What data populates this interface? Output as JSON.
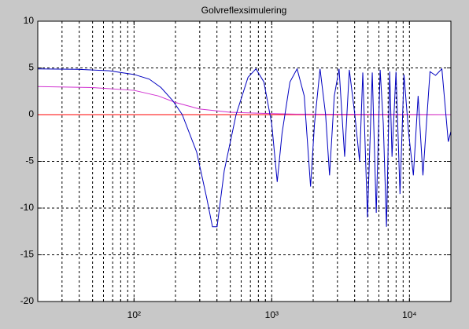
{
  "chart_data": {
    "type": "line",
    "title": "Golvreflexsimulering",
    "xscale": "log",
    "grid": true,
    "xlim": [
      20,
      20000
    ],
    "ylim": [
      -20,
      10
    ],
    "xticks": [
      {
        "value": 100,
        "label": "10²"
      },
      {
        "value": 1000,
        "label": "10³"
      },
      {
        "value": 10000,
        "label": "10⁴"
      }
    ],
    "xminorticks": [
      30,
      40,
      50,
      60,
      70,
      80,
      90,
      200,
      300,
      400,
      500,
      600,
      700,
      800,
      900,
      2000,
      3000,
      4000,
      5000,
      6000,
      7000,
      8000,
      9000
    ],
    "yticks": [
      -20,
      -15,
      -10,
      -5,
      0,
      5,
      10
    ],
    "series": [
      {
        "color": "#ff0000",
        "x": [
          20,
          20000
        ],
        "values": [
          0,
          0
        ]
      },
      {
        "color": "#d030d0",
        "x": [
          20,
          50,
          100,
          150,
          200,
          300,
          500,
          1000,
          1500,
          20000
        ],
        "values": [
          3,
          2.9,
          2.6,
          2.0,
          1.3,
          0.6,
          0.25,
          0.1,
          0.05,
          0
        ]
      },
      {
        "color": "#0000c0",
        "x": [
          20,
          39,
          66,
          100,
          129,
          157,
          191,
          224,
          285,
          338,
          371,
          401,
          452,
          551,
          673,
          768,
          877,
          1000,
          1096,
          1188,
          1356,
          1528,
          1722,
          1914,
          2044,
          2243,
          2461,
          2629,
          2846,
          3083,
          3383,
          3659,
          4012,
          4345,
          4583,
          4958,
          5370,
          5741,
          6127,
          6459,
          6813,
          7187,
          7472,
          7985,
          8537,
          9126,
          9869,
          10680,
          11560,
          12530,
          14100,
          15480,
          17200,
          19140,
          20000
        ],
        "values": [
          4.9,
          4.85,
          4.7,
          4.3,
          3.8,
          2.9,
          1.5,
          0,
          -4,
          -9,
          -12,
          -12,
          -6,
          0,
          4,
          4.9,
          3.5,
          -1,
          -7.2,
          -2,
          3.5,
          4.9,
          2,
          -7.7,
          -1,
          4.9,
          0,
          -6.5,
          2,
          4.9,
          -4.5,
          4.8,
          0,
          -5,
          4.5,
          -11,
          4.5,
          -10.5,
          4.8,
          -1,
          -12,
          4.6,
          -4.5,
          4.6,
          -8.5,
          4.3,
          -2,
          -6.5,
          2,
          -6.5,
          4.6,
          4.2,
          4.9,
          -2.9,
          -1.8
        ]
      }
    ]
  }
}
